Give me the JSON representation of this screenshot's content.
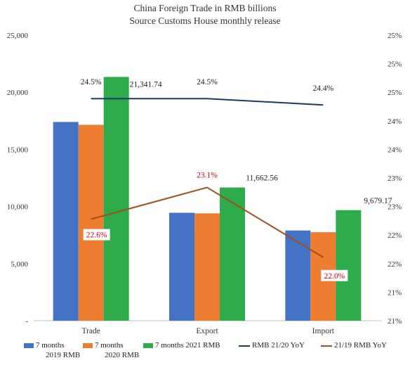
{
  "chart_data": {
    "type": "bar",
    "title": "China Foreign Trade in RMB billions",
    "subtitle": "Source Customs House monthly release",
    "categories": [
      "Trade",
      "Export",
      "Import"
    ],
    "ylim": [
      0,
      25000
    ],
    "y_ticks": [
      "-",
      "5,000",
      "10,000",
      "15,000",
      "20,000",
      "25,000"
    ],
    "y_tick_values": [
      0,
      5000,
      10000,
      15000,
      20000,
      25000
    ],
    "y2_tick_labels": [
      "21%",
      "21%",
      "22%",
      "22%",
      "23%",
      "23%",
      "24%",
      "24%",
      "25%",
      "25%",
      "25%"
    ],
    "y2_range": [
      21.0,
      25.5
    ],
    "grid": false,
    "legend_position": "bottom",
    "series": [
      {
        "name": "7 months 2019 RMB",
        "legend_lines": [
          "7 months",
          "2019 RMB"
        ],
        "kind": "bar",
        "color": "#4472c4",
        "values": [
          17400,
          9450,
          7900
        ]
      },
      {
        "name": "7 months 2020 RMB",
        "legend_lines": [
          "7 months",
          "2020 RMB"
        ],
        "kind": "bar",
        "color": "#ed7d31",
        "values": [
          17150,
          9400,
          7750
        ]
      },
      {
        "name": "7 months 2021 RMB",
        "legend_lines": [
          "7 months 2021 RMB"
        ],
        "kind": "bar",
        "color": "#2eab4b",
        "values": [
          21341.74,
          11662.56,
          9679.17
        ],
        "labels": [
          "21,341.74",
          "11,662.56",
          "9,679.17"
        ]
      },
      {
        "name": "RMB 21/20 YoY",
        "legend_lines": [
          "RMB 21/20 YoY"
        ],
        "kind": "line",
        "axis": "right",
        "color": "#203864",
        "values": [
          24.5,
          24.5,
          24.4
        ],
        "labels": [
          "24.5%",
          "24.5%",
          "24.4%"
        ]
      },
      {
        "name": "21/19 RMB YoY",
        "legend_lines": [
          "21/19 RMB YoY"
        ],
        "kind": "line",
        "axis": "right",
        "color": "#a0501e",
        "values": [
          22.6,
          23.1,
          22.0
        ],
        "labels": [
          "22.6%",
          "23.1%",
          "22.0%"
        ],
        "label_color": "#d40000"
      }
    ]
  }
}
